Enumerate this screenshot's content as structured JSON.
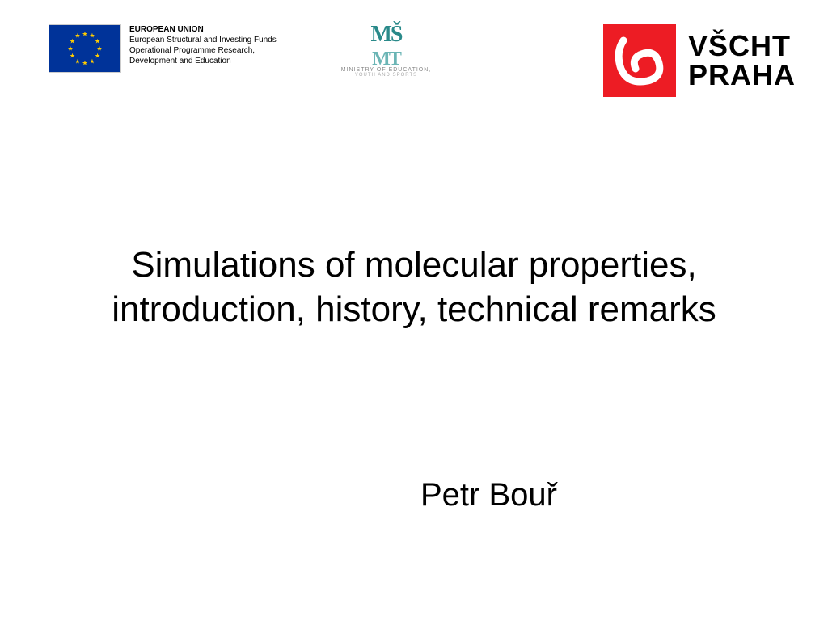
{
  "header": {
    "eu": {
      "flag_bg": "#003399",
      "star_color": "#ffcc00",
      "line1": "EUROPEAN UNION",
      "line2": "European Structural and Investing Funds",
      "line3": "Operational Programme Research,",
      "line4": "Development and Education"
    },
    "msmt": {
      "logo_top": "MŠ",
      "logo_bot": "MT",
      "line1": "MINISTRY OF EDUCATION,",
      "line2": "YOUTH AND SPORTS",
      "color_main": "#2a8a8a",
      "color_sub": "#6bb5b5"
    },
    "vscht": {
      "bg_color": "#ed1c24",
      "line1": "VŠCHT",
      "line2": "PRAHA"
    }
  },
  "main": {
    "title": "Simulations of molecular properties, introduction, history, technical remarks",
    "author": "Petr Bouř"
  },
  "style": {
    "title_fontsize": 44,
    "author_fontsize": 40,
    "background": "#ffffff",
    "text_color": "#000000"
  }
}
